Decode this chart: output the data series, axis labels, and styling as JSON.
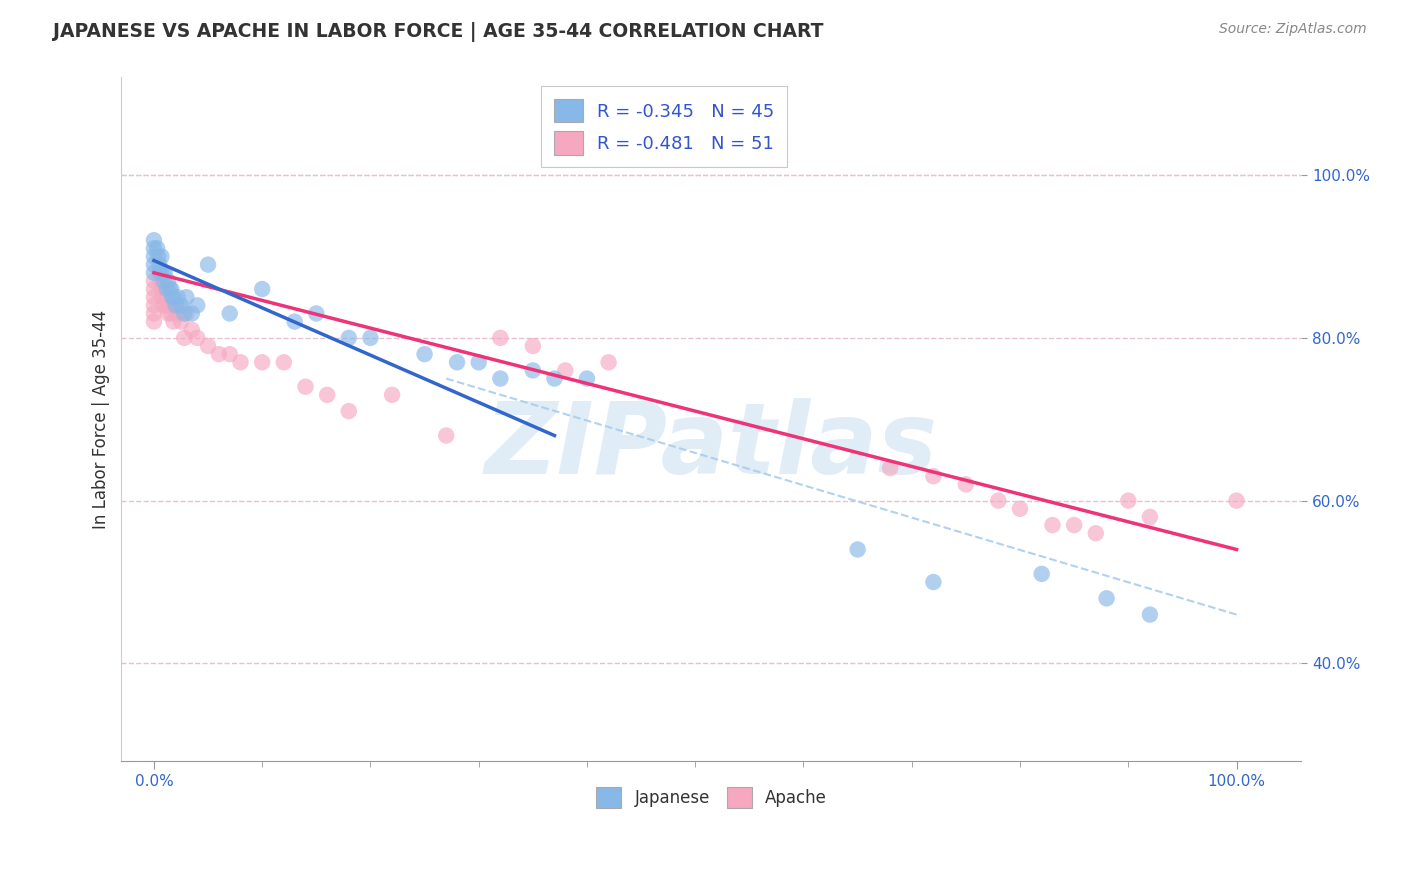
{
  "title": "JAPANESE VS APACHE IN LABOR FORCE | AGE 35-44 CORRELATION CHART",
  "source": "Source: ZipAtlas.com",
  "ylabel": "In Labor Force | Age 35-44",
  "xlim": [
    -0.03,
    1.06
  ],
  "ylim": [
    0.28,
    1.12
  ],
  "xtick_positions": [
    0.0,
    1.0
  ],
  "xtick_labels": [
    "0.0%",
    "100.0%"
  ],
  "yticks": [
    0.4,
    0.6,
    0.8,
    1.0
  ],
  "ytick_labels": [
    "40.0%",
    "60.0%",
    "80.0%",
    "100.0%"
  ],
  "legend_r_japanese": "-0.345",
  "legend_n_japanese": "45",
  "legend_r_apache": "-0.481",
  "legend_n_apache": "51",
  "japanese_color": "#88b8e8",
  "apache_color": "#f5a8c0",
  "japanese_line_color": "#3366cc",
  "apache_line_color": "#ee3377",
  "dashed_line_color": "#aaccee",
  "background_color": "#ffffff",
  "grid_color": "#e8c0d0",
  "watermark_color": "#c8ddf0",
  "japanese_x": [
    0.0,
    0.0,
    0.0,
    0.0,
    0.0,
    0.003,
    0.004,
    0.005,
    0.006,
    0.007,
    0.008,
    0.009,
    0.01,
    0.012,
    0.013,
    0.015,
    0.016,
    0.017,
    0.018,
    0.02,
    0.022,
    0.025,
    0.028,
    0.03,
    0.035,
    0.04,
    0.05,
    0.07,
    0.1,
    0.13,
    0.15,
    0.18,
    0.2,
    0.25,
    0.28,
    0.3,
    0.32,
    0.35,
    0.37,
    0.4,
    0.65,
    0.72,
    0.82,
    0.88,
    0.92
  ],
  "japanese_y": [
    0.92,
    0.91,
    0.89,
    0.88,
    0.9,
    0.91,
    0.9,
    0.89,
    0.88,
    0.9,
    0.88,
    0.87,
    0.88,
    0.86,
    0.87,
    0.86,
    0.86,
    0.85,
    0.85,
    0.84,
    0.85,
    0.84,
    0.83,
    0.85,
    0.83,
    0.84,
    0.89,
    0.83,
    0.86,
    0.82,
    0.83,
    0.8,
    0.8,
    0.78,
    0.77,
    0.77,
    0.75,
    0.76,
    0.75,
    0.75,
    0.54,
    0.5,
    0.51,
    0.48,
    0.46
  ],
  "apache_x": [
    0.0,
    0.0,
    0.0,
    0.0,
    0.0,
    0.0,
    0.005,
    0.006,
    0.007,
    0.008,
    0.009,
    0.01,
    0.011,
    0.012,
    0.013,
    0.015,
    0.016,
    0.018,
    0.02,
    0.022,
    0.025,
    0.028,
    0.03,
    0.035,
    0.04,
    0.05,
    0.06,
    0.07,
    0.08,
    0.1,
    0.12,
    0.14,
    0.16,
    0.18,
    0.22,
    0.27,
    0.32,
    0.35,
    0.38,
    0.42,
    0.68,
    0.72,
    0.75,
    0.78,
    0.8,
    0.83,
    0.85,
    0.87,
    0.9,
    0.92,
    1.0
  ],
  "apache_y": [
    0.87,
    0.86,
    0.85,
    0.84,
    0.83,
    0.82,
    0.88,
    0.87,
    0.86,
    0.85,
    0.84,
    0.86,
    0.85,
    0.84,
    0.83,
    0.84,
    0.83,
    0.82,
    0.84,
    0.83,
    0.82,
    0.8,
    0.83,
    0.81,
    0.8,
    0.79,
    0.78,
    0.78,
    0.77,
    0.77,
    0.77,
    0.74,
    0.73,
    0.71,
    0.73,
    0.68,
    0.8,
    0.79,
    0.76,
    0.77,
    0.64,
    0.63,
    0.62,
    0.6,
    0.59,
    0.57,
    0.57,
    0.56,
    0.6,
    0.58,
    0.6
  ],
  "japanese_line_x": [
    0.0,
    0.37
  ],
  "japanese_line_y_start": 0.895,
  "japanese_line_y_end": 0.68,
  "apache_line_x": [
    0.0,
    1.0
  ],
  "apache_line_y_start": 0.88,
  "apache_line_y_end": 0.54,
  "dashed_line_x": [
    0.27,
    1.0
  ],
  "dashed_line_y_start": 0.75,
  "dashed_line_y_end": 0.46,
  "top_dotted_line_y": 1.0
}
